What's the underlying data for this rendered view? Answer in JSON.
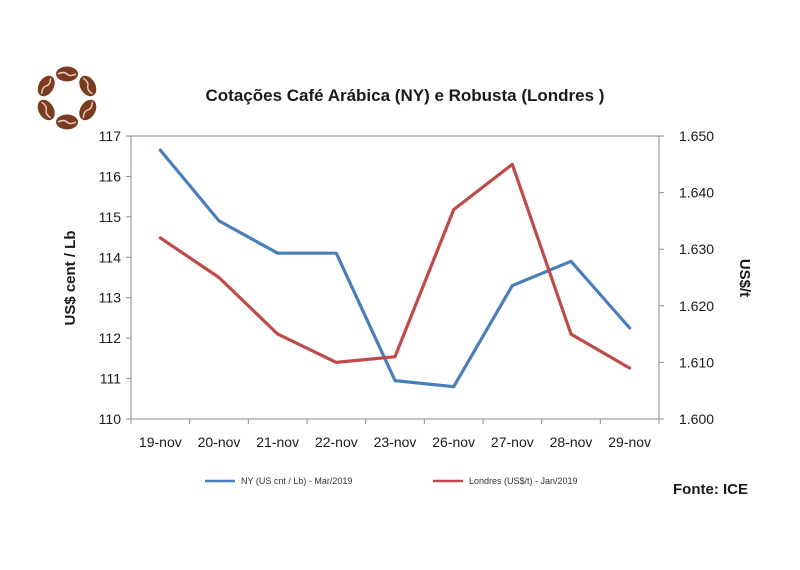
{
  "chart_data": {
    "type": "line",
    "title": "Cotações Café Arábica (NY) e Robusta (Londres )",
    "categories": [
      "19-nov",
      "20-nov",
      "21-nov",
      "22-nov",
      "23-nov",
      "26-nov",
      "27-nov",
      "28-nov",
      "29-nov"
    ],
    "ylabel_left": "US$ cent / Lb",
    "ylabel_right": "US$/t",
    "ylim_left": [
      110,
      117
    ],
    "ylim_right": [
      1.6,
      1.65
    ],
    "yticks_left": [
      "110",
      "111",
      "112",
      "113",
      "114",
      "115",
      "116",
      "117"
    ],
    "yticks_right": [
      "1.600",
      "1.610",
      "1.620",
      "1.630",
      "1.640",
      "1.650"
    ],
    "series": [
      {
        "name": "NY (US cnt / Lb) - Mar/2019",
        "axis": "left",
        "color": "#4a7ebb",
        "values": [
          116.65,
          114.9,
          114.1,
          114.1,
          110.95,
          110.8,
          113.3,
          113.9,
          112.25
        ]
      },
      {
        "name": "Londres (US$/t) - Jan/2019",
        "axis": "right",
        "color": "#be4b48",
        "values": [
          1.632,
          1.625,
          1.615,
          1.61,
          1.611,
          1.637,
          1.645,
          1.615,
          1.609
        ]
      }
    ],
    "grid": false,
    "legend_position": "bottom",
    "source": "Fonte: ICE"
  },
  "logo": {
    "name": "coffee-beans-logo",
    "color": "#7a3b1e"
  }
}
